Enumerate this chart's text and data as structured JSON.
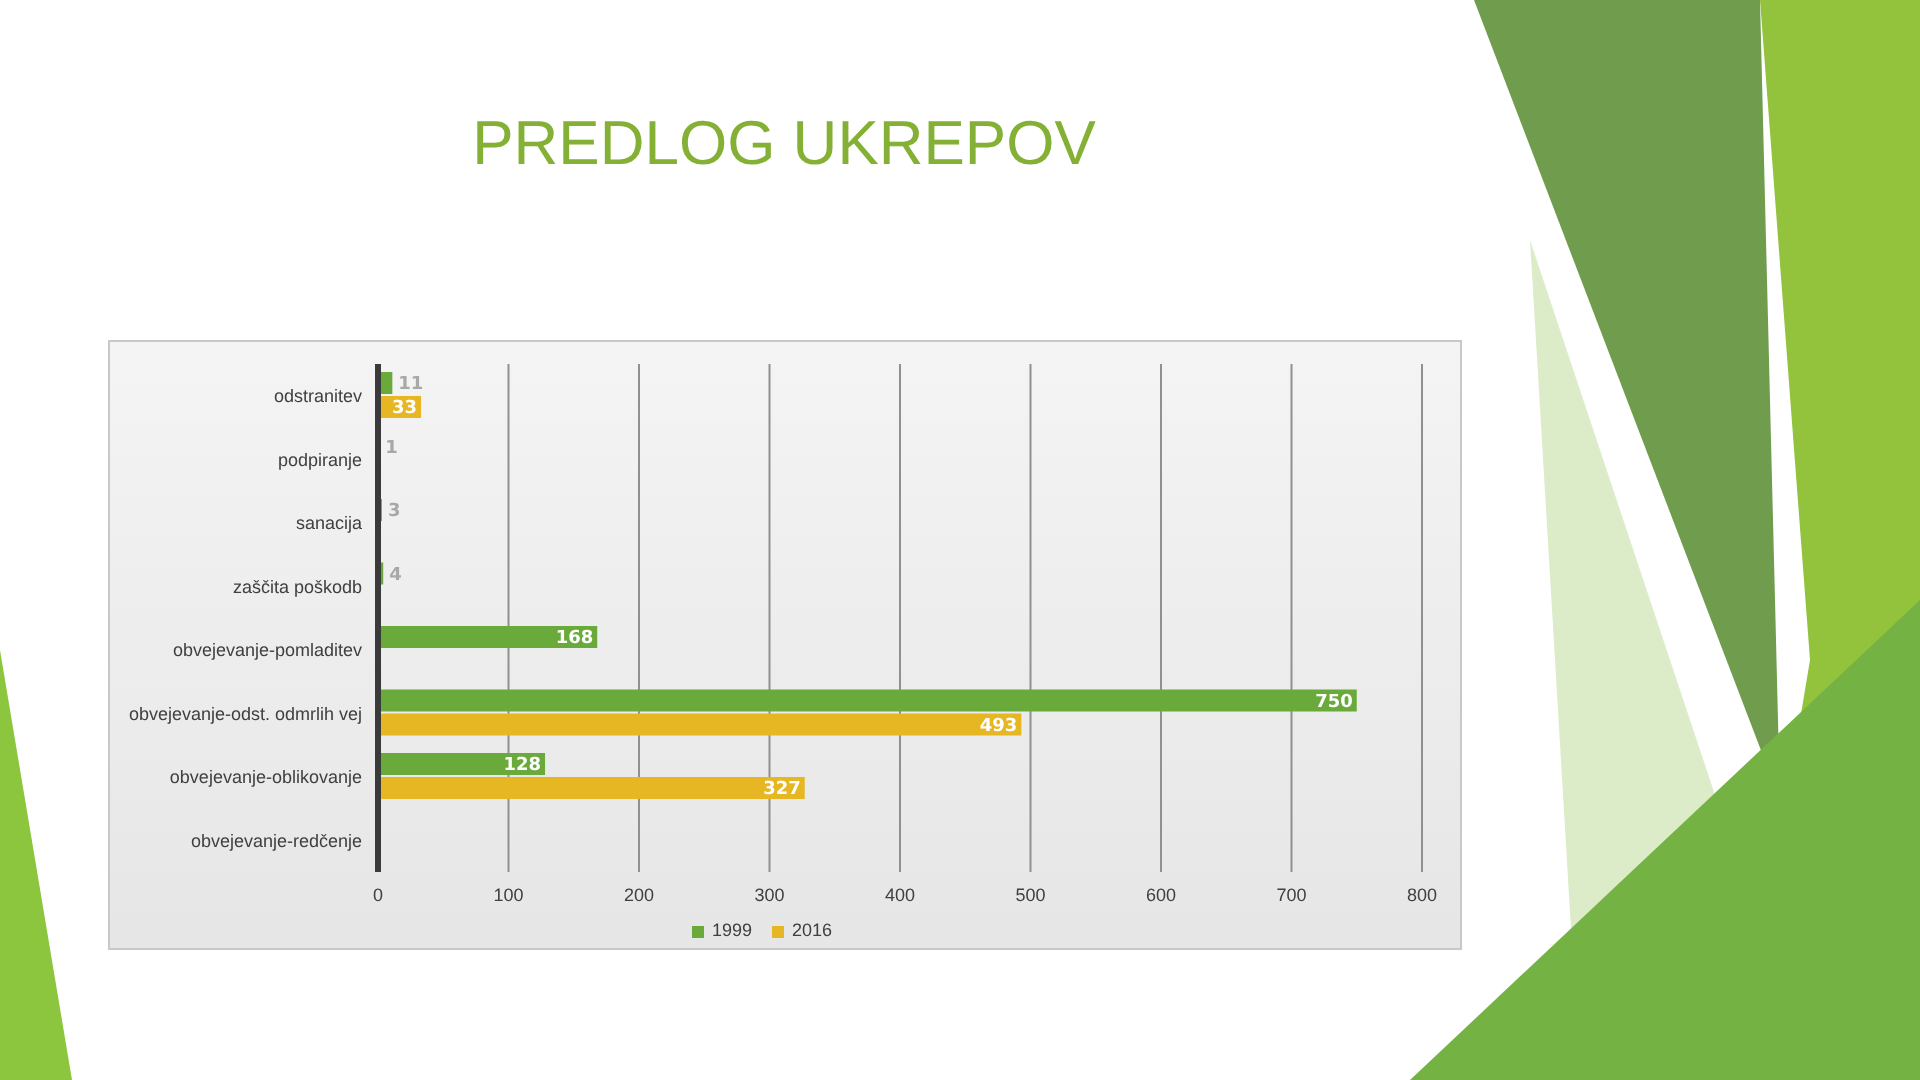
{
  "chart_data": {
    "type": "bar",
    "title": "PREDLOG UKREPOV",
    "orientation": "horizontal",
    "categories": [
      "odstranitev",
      "podpiranje",
      "sanacija",
      "zaščita poškodb",
      "obvejevanje-pomladitev",
      "obvejevanje-odst. odmrlih vej",
      "obvejevanje-oblikovanje",
      "obvejevanje-redčenje"
    ],
    "series": [
      {
        "name": "1999",
        "color": "#6aaa3a",
        "values": [
          11,
          1,
          3,
          4,
          168,
          750,
          128,
          null
        ]
      },
      {
        "name": "2016",
        "color": "#e6b722",
        "values": [
          33,
          null,
          null,
          null,
          null,
          493,
          327,
          null
        ]
      }
    ],
    "xlim": [
      0,
      800
    ],
    "xticks": [
      0,
      100,
      200,
      300,
      400,
      500,
      600,
      700,
      800
    ],
    "grid": "x",
    "legend": "bottom",
    "data_labels": true
  }
}
